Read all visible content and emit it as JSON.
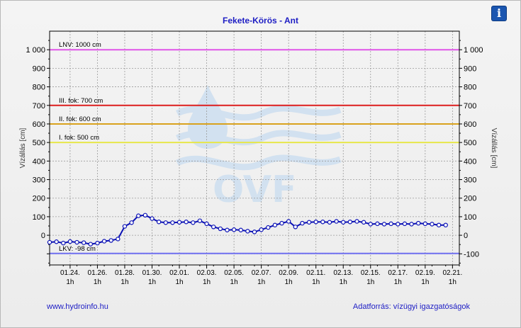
{
  "header": {
    "info_icon": "info-icon",
    "info_label": "i"
  },
  "footer": {
    "left": "www.hydroinfo.hu",
    "right": "Adatforrás: vízügyi igazgatóságok"
  },
  "watermark": {
    "text": "OVF"
  },
  "colors": {
    "series": "#0a10b5",
    "lnv": "#e055e8",
    "fok3": "#dd1e1e",
    "fok2": "#d9a21d",
    "fok1": "#e7e74a",
    "lkv": "#6f6ff0",
    "title": "#1d1dc4"
  },
  "chart_data": {
    "type": "line",
    "title": "Fekete-Körös - Ant",
    "ylabel": "Vízállás [cm]",
    "ylabel_right": "Vízállás [cm]",
    "ylim": [
      -160,
      1100
    ],
    "yticks": [
      -100,
      0,
      100,
      200,
      300,
      400,
      500,
      600,
      700,
      800,
      900,
      1000
    ],
    "ytick_labels_left": [
      "",
      "0",
      "100",
      "200",
      "300",
      "400",
      "500",
      "600",
      "700",
      "800",
      "900",
      "1 000"
    ],
    "ytick_labels_right": [
      "-100",
      "0",
      "100",
      "200",
      "300",
      "400",
      "500",
      "600",
      "700",
      "800",
      "900",
      "1 000"
    ],
    "xlim": [
      0,
      30
    ],
    "xticks": [
      {
        "x": 1.5,
        "date": "01.24.",
        "hour": "1h"
      },
      {
        "x": 3.5,
        "date": "01.26.",
        "hour": "1h"
      },
      {
        "x": 5.5,
        "date": "01.28.",
        "hour": "1h"
      },
      {
        "x": 7.5,
        "date": "01.30.",
        "hour": "1h"
      },
      {
        "x": 9.5,
        "date": "02.01.",
        "hour": "1h"
      },
      {
        "x": 11.5,
        "date": "02.03.",
        "hour": "1h"
      },
      {
        "x": 13.5,
        "date": "02.05.",
        "hour": "1h"
      },
      {
        "x": 15.5,
        "date": "02.07.",
        "hour": "1h"
      },
      {
        "x": 17.5,
        "date": "02.09.",
        "hour": "1h"
      },
      {
        "x": 19.5,
        "date": "02.11.",
        "hour": "1h"
      },
      {
        "x": 21.5,
        "date": "02.13.",
        "hour": "1h"
      },
      {
        "x": 23.5,
        "date": "02.15.",
        "hour": "1h"
      },
      {
        "x": 25.5,
        "date": "02.17.",
        "hour": "1h"
      },
      {
        "x": 27.5,
        "date": "02.19.",
        "hour": "1h"
      },
      {
        "x": 29.5,
        "date": "02.21.",
        "hour": "1h"
      }
    ],
    "reference_lines": [
      {
        "label": "LNV: 1000 cm",
        "value": 1000,
        "color": "#e055e8"
      },
      {
        "label": "III. fok: 700 cm",
        "value": 700,
        "color": "#dd1e1e"
      },
      {
        "label": "II. fok: 600 cm",
        "value": 600,
        "color": "#d9a21d"
      },
      {
        "label": "I. fok: 500 cm",
        "value": 500,
        "color": "#e7e74a"
      },
      {
        "label": "LKV: -98 cm",
        "value": -98,
        "color": "#6f6ff0"
      }
    ],
    "grid": true,
    "series": [
      {
        "x": [
          0.0,
          0.5,
          1.0,
          1.5,
          2.0,
          2.5,
          3.0,
          3.5,
          4.0,
          4.5,
          5.0,
          5.5,
          6.0,
          6.5,
          7.0,
          7.5,
          8.0,
          8.5,
          9.0,
          9.5,
          10.0,
          10.5,
          11.0,
          11.5,
          12.0,
          12.5,
          13.0,
          13.5,
          14.0,
          14.5,
          15.0,
          15.5,
          16.0,
          16.5,
          17.0,
          17.5,
          18.0,
          18.5,
          19.0,
          19.5,
          20.0,
          20.5,
          21.0,
          21.5,
          22.0,
          22.5,
          23.0,
          23.5,
          24.0,
          24.5,
          25.0,
          25.5,
          26.0,
          26.5,
          27.0,
          27.5,
          28.0,
          28.5,
          29.0
        ],
        "values": [
          -38,
          -35,
          -42,
          -34,
          -38,
          -40,
          -48,
          -42,
          -32,
          -28,
          -20,
          48,
          68,
          105,
          108,
          90,
          72,
          68,
          68,
          70,
          72,
          68,
          78,
          62,
          45,
          35,
          28,
          30,
          28,
          22,
          18,
          30,
          42,
          55,
          65,
          75,
          45,
          65,
          70,
          72,
          72,
          70,
          75,
          70,
          72,
          75,
          70,
          60,
          62,
          60,
          62,
          60,
          62,
          60,
          65,
          62,
          60,
          55,
          55
        ]
      }
    ]
  }
}
